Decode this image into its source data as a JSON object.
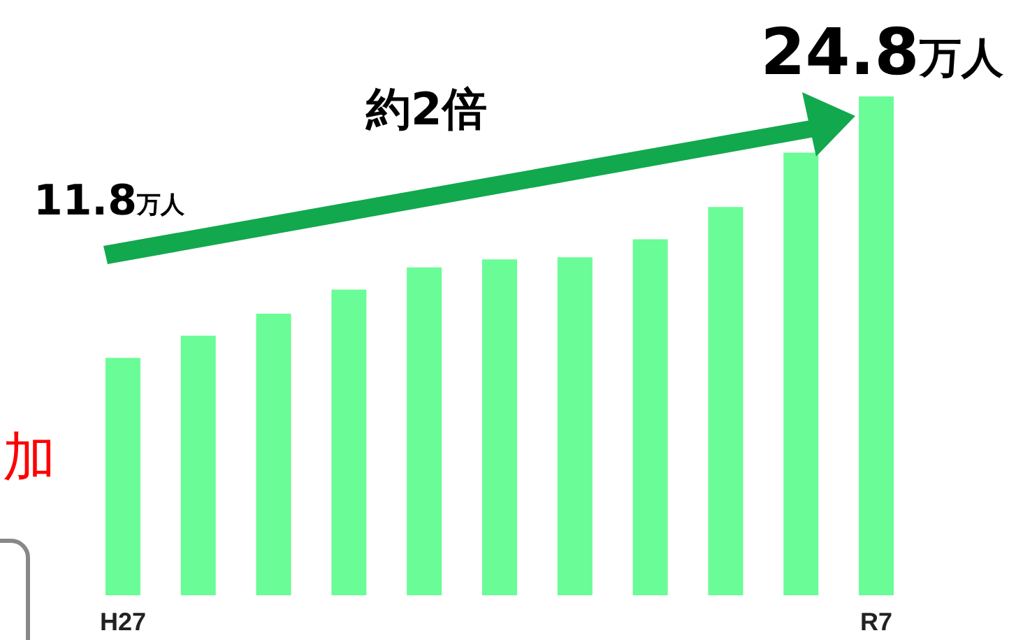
{
  "chart_data": {
    "type": "bar",
    "categories": [
      "H27",
      null,
      null,
      null,
      null,
      null,
      null,
      null,
      null,
      null,
      "R7"
    ],
    "values": [
      11.8,
      12.9,
      14.0,
      15.2,
      16.3,
      16.7,
      16.8,
      17.7,
      19.3,
      22.0,
      24.8
    ],
    "color": "#6afc96",
    "value_labels": [
      "11.8万人",
      null,
      null,
      null,
      null,
      null,
      null,
      null,
      null,
      null,
      "24.8万人"
    ],
    "annotations": [
      "約2倍",
      "加"
    ]
  }
}
